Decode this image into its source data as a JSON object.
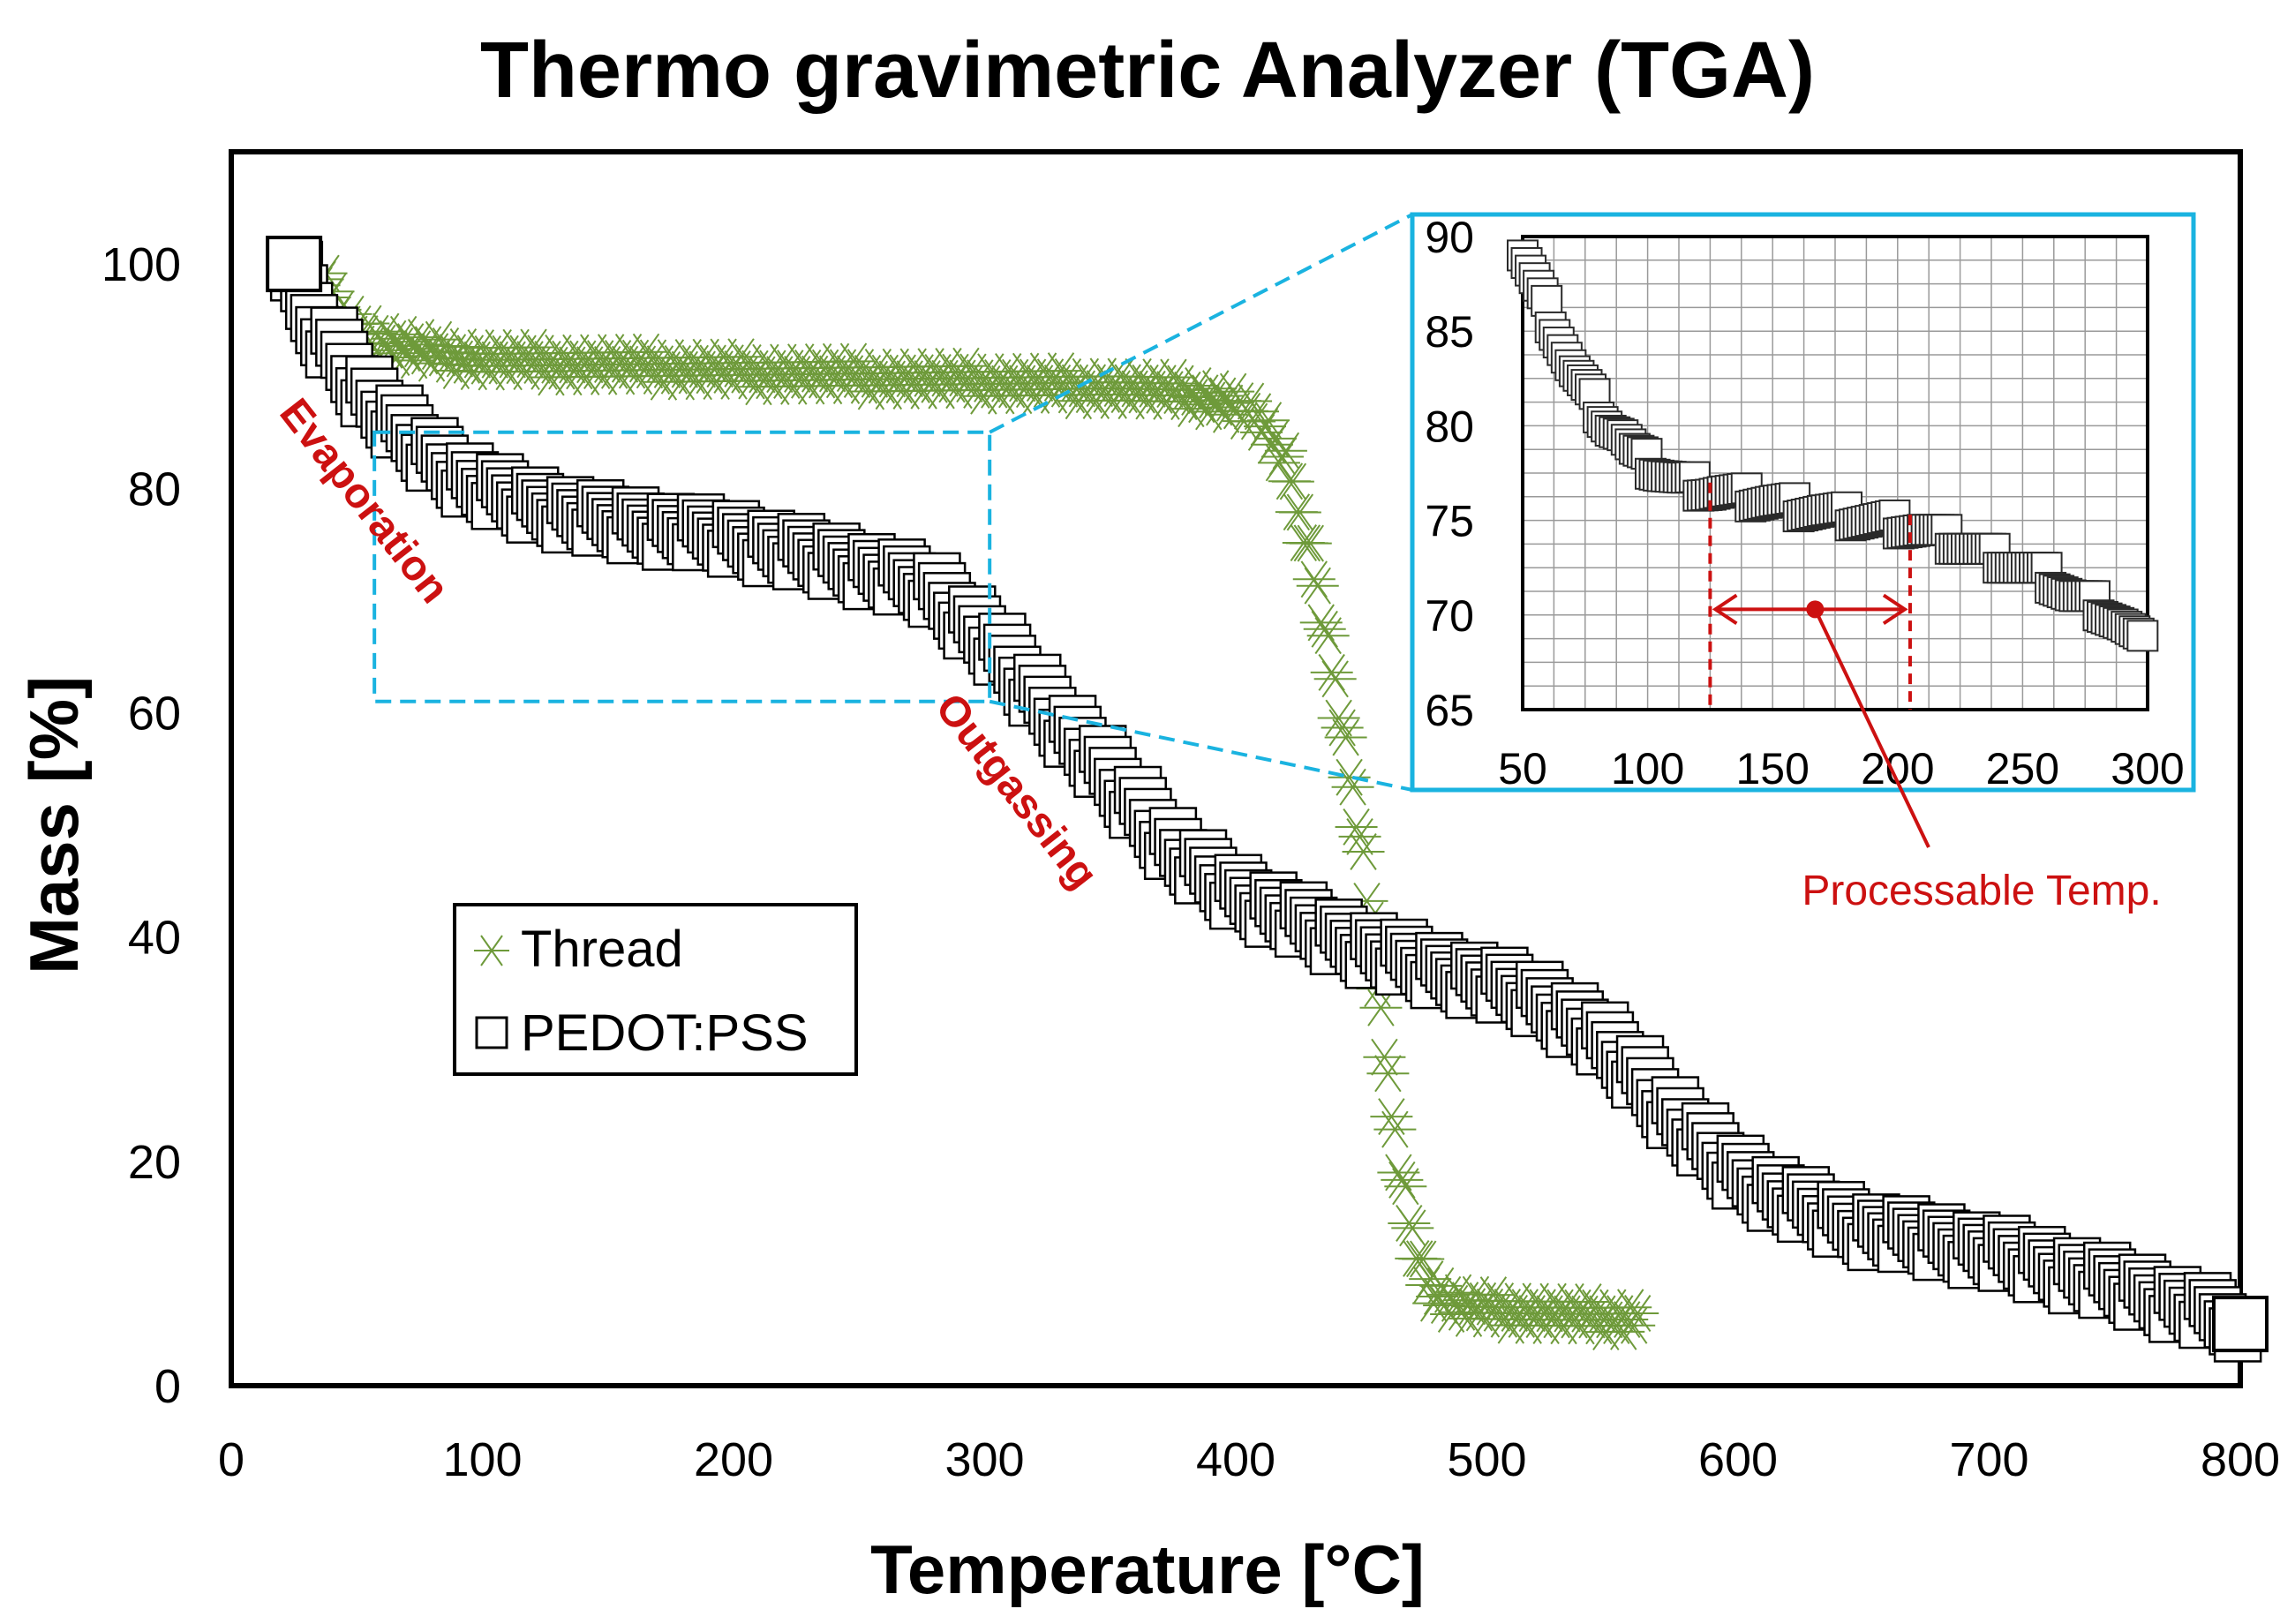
{
  "chart_data": [
    {
      "type": "scatter",
      "title": "Thermo gravimetric Analyzer (TGA)",
      "xlabel": "Temperature [°C]",
      "ylabel": "Mass [%]",
      "xlim": [
        0,
        800
      ],
      "ylim": [
        0,
        110
      ],
      "xticks": [
        0,
        100,
        200,
        300,
        400,
        500,
        600,
        700,
        800
      ],
      "yticks": [
        0,
        20,
        40,
        60,
        80,
        100
      ],
      "grid": false,
      "legend_position": "left-center",
      "series": [
        {
          "name": "Thread",
          "marker": "asterisk",
          "color": "#6e9a3a",
          "x": [
            35,
            45,
            60,
            80,
            100,
            150,
            200,
            250,
            300,
            350,
            380,
            400,
            410,
            420,
            430,
            440,
            450,
            455,
            460,
            465,
            470,
            475,
            480,
            490,
            500,
            520,
            540,
            560
          ],
          "y": [
            99,
            95,
            93,
            92,
            91.5,
            91,
            90.5,
            90,
            89.5,
            89,
            88.5,
            87.5,
            86,
            82,
            74,
            62,
            48,
            38,
            28,
            20,
            14,
            10,
            8,
            7,
            6.8,
            6.5,
            6.2,
            6
          ]
        },
        {
          "name": "PEDOT:PSS",
          "marker": "open-square",
          "color": "#000000",
          "x": [
            25,
            30,
            40,
            50,
            60,
            70,
            80,
            90,
            100,
            120,
            150,
            200,
            250,
            280,
            300,
            320,
            340,
            360,
            380,
            400,
            420,
            440,
            460,
            480,
            500,
            520,
            540,
            560,
            580,
            600,
            620,
            650,
            700,
            750,
            780,
            800
          ],
          "y": [
            100,
            96,
            93,
            90,
            87,
            85,
            83,
            81.5,
            80,
            78.5,
            77,
            75.5,
            73,
            71,
            67,
            62,
            57,
            52,
            47,
            44,
            42,
            40,
            38.5,
            37,
            36,
            34.5,
            32,
            28,
            23,
            19,
            16.5,
            14,
            12,
            9,
            7,
            5.5
          ]
        }
      ],
      "annotations": [
        "Evaporation",
        "Outgassing"
      ],
      "zoom_region": {
        "x": [
          57,
          302
        ],
        "y": [
          61,
          85
        ]
      }
    },
    {
      "type": "scatter",
      "title": "",
      "xlabel": "",
      "ylabel": "",
      "xlim": [
        50,
        300
      ],
      "ylim": [
        65,
        90
      ],
      "xticks": [
        50,
        100,
        150,
        200,
        250,
        300
      ],
      "yticks": [
        65,
        70,
        75,
        80,
        85,
        90
      ],
      "grid": true,
      "series": [
        {
          "name": "PEDOT:PSS",
          "marker": "open-square",
          "color": "#000000",
          "x": [
            50,
            55,
            60,
            65,
            70,
            75,
            80,
            85,
            90,
            95,
            100,
            105,
            110,
            115,
            120,
            125,
            130,
            140,
            150,
            160,
            170,
            180,
            190,
            200,
            210,
            220,
            230,
            240,
            250,
            260,
            270,
            280,
            290,
            298
          ],
          "y": [
            89,
            87.5,
            86,
            84.5,
            83,
            82,
            81,
            80,
            79.5,
            78.5,
            78,
            77.6,
            77.3,
            77,
            76.8,
            76.6,
            76.5,
            76.2,
            76,
            75.7,
            75.5,
            75.2,
            75,
            74.8,
            74.5,
            74,
            73.5,
            73,
            72.5,
            72,
            71,
            70.5,
            69.5,
            68.5
          ]
        }
      ],
      "range_marker": {
        "x1": 125,
        "x2": 205,
        "center": 167
      },
      "annotation": "Processable Temp."
    }
  ],
  "colors": {
    "thread": "#6e9a3a",
    "pedot": "#000000",
    "inset_frame": "#1ab3e0",
    "annotation": "#cc1111"
  }
}
